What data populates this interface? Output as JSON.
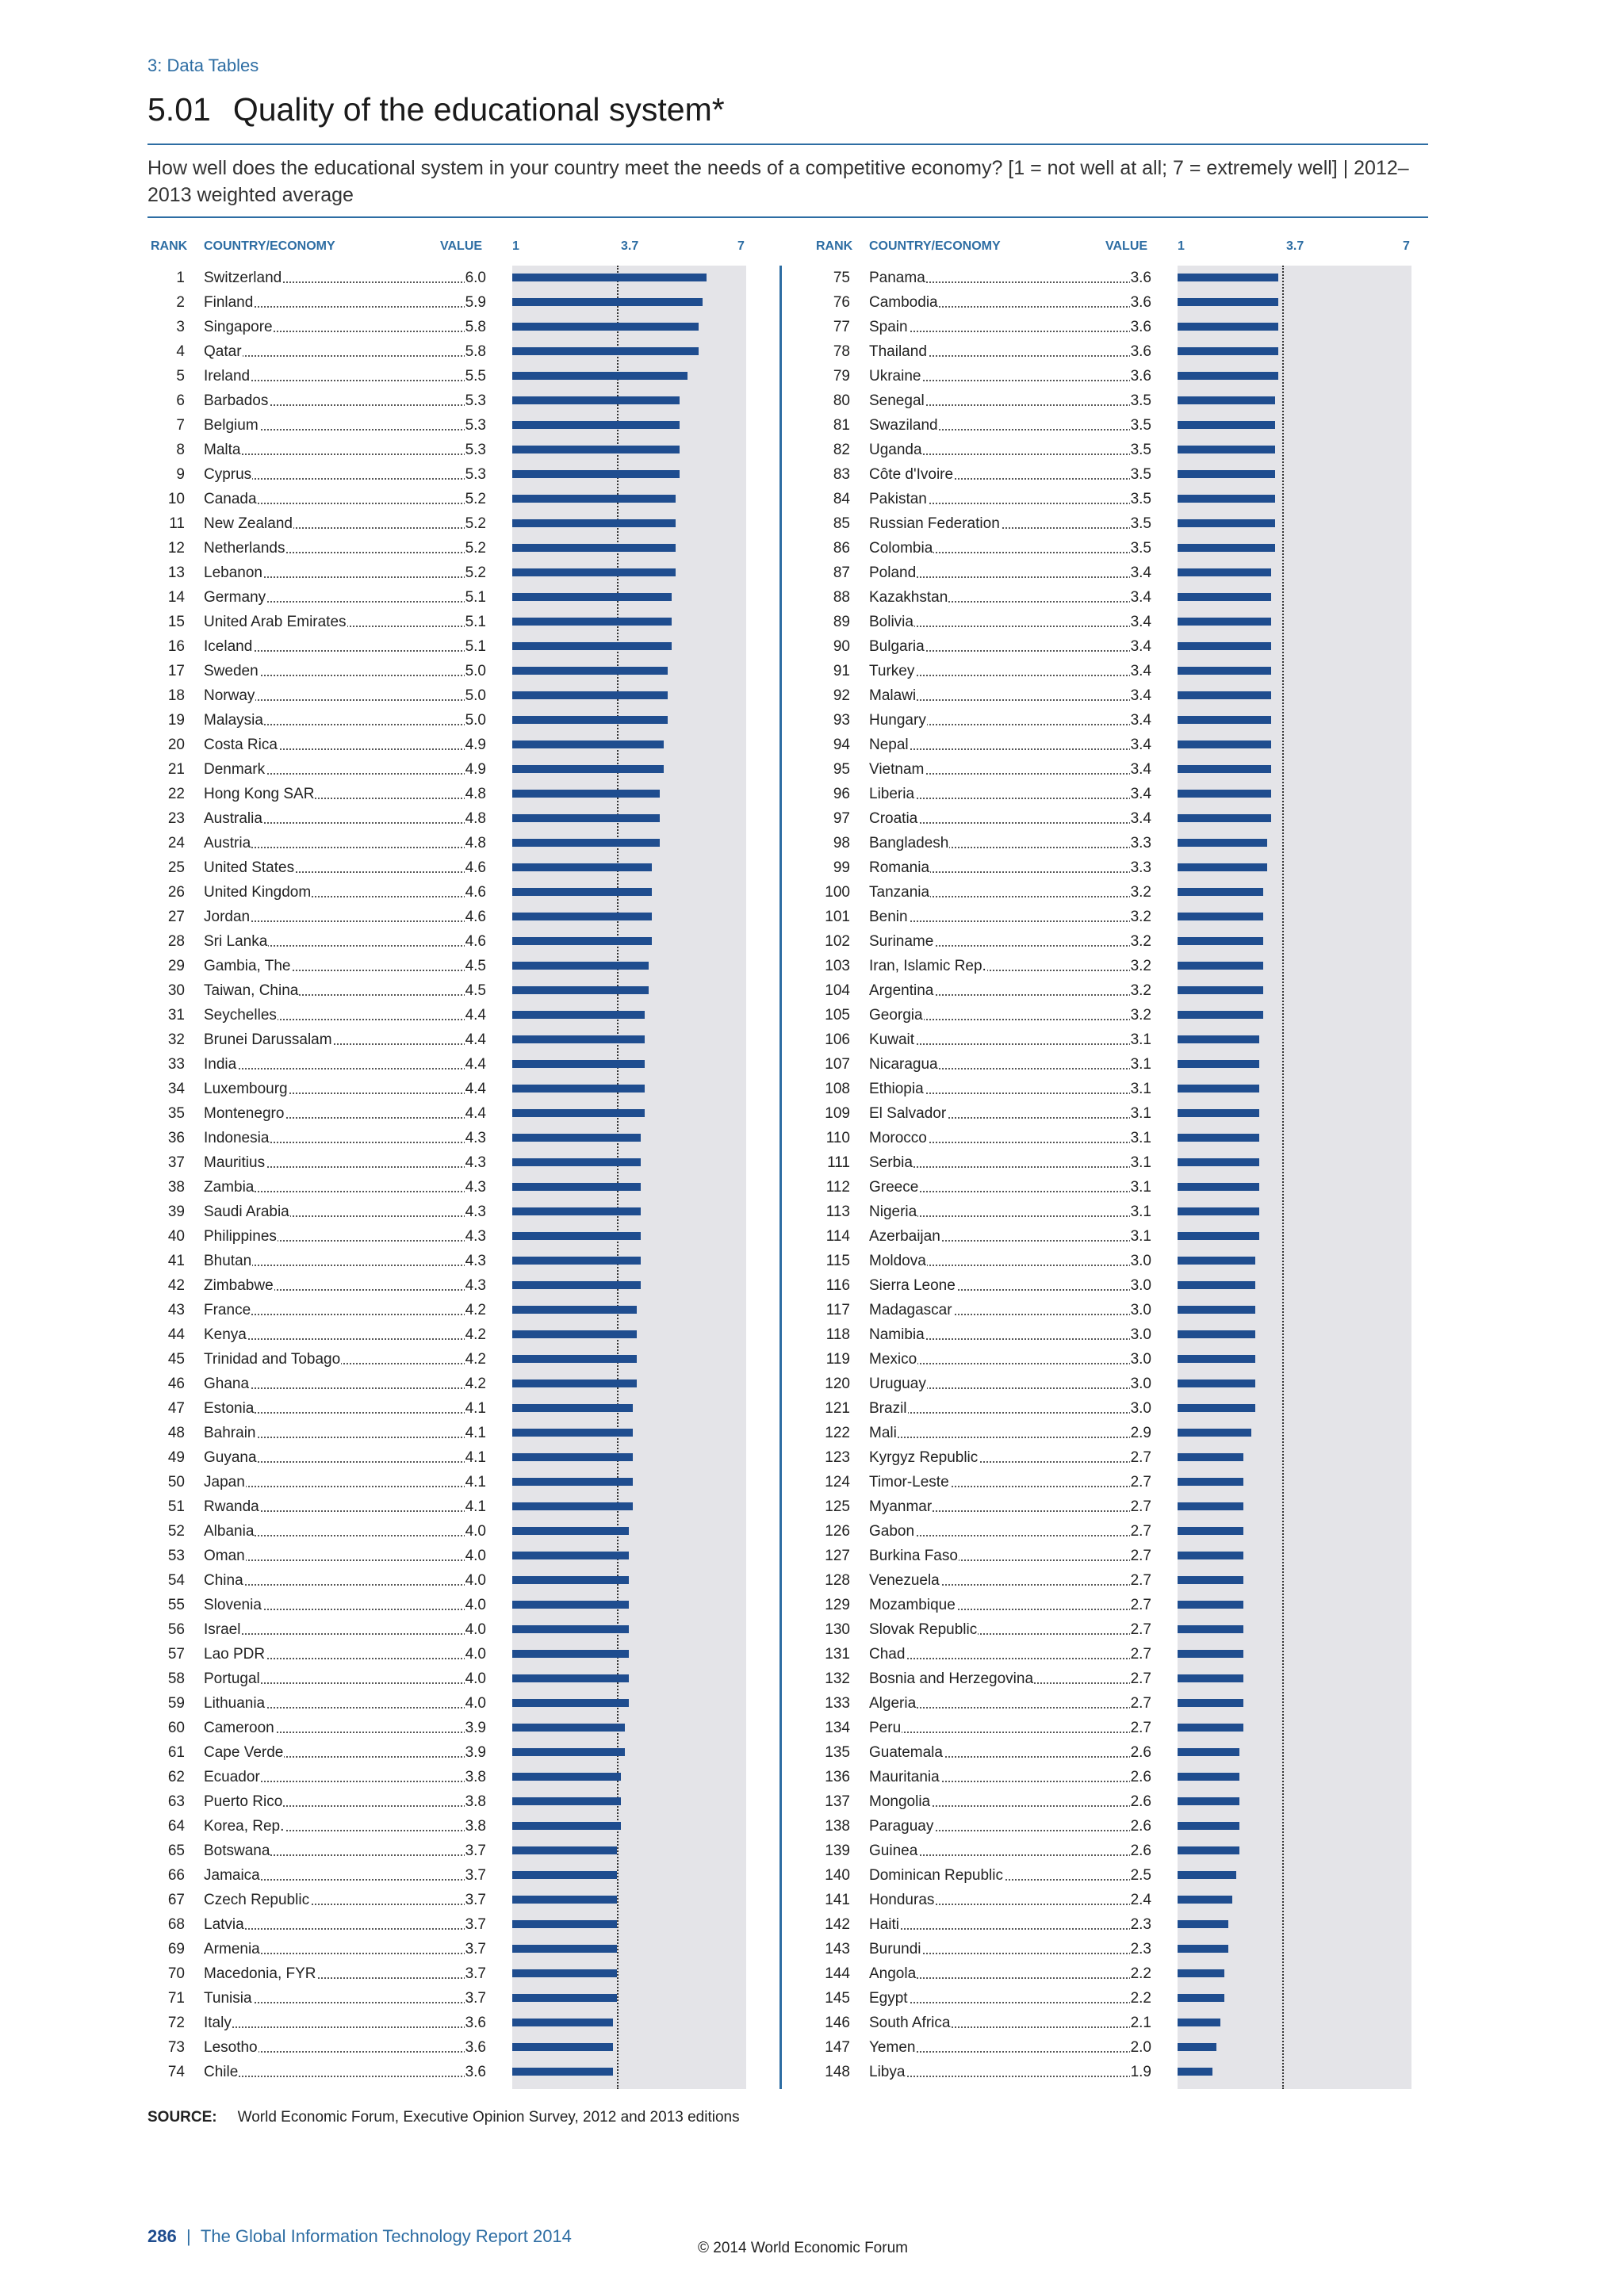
{
  "section": "3: Data Tables",
  "title_number": "5.01",
  "title_text": "Quality of the educational system*",
  "question": "How well does the educational system in your country meet the needs of a competitive economy? [1 = not well at all; 7 = extremely well]  |  2012–2013 weighted average",
  "headers": {
    "rank": "RANK",
    "country": "COUNTRY/ECONOMY",
    "value": "VALUE",
    "scale_min": "1",
    "scale_mid": "3.7",
    "scale_max": "7"
  },
  "source_label": "SOURCE:",
  "source_text": "World Economic Forum, Executive Opinion Survey, 2012 and 2013 editions",
  "footer_page": "286",
  "footer_sep": "|",
  "footer_text": "The Global Information Technology Report 2014",
  "copyright": "© 2014 World Economic Forum",
  "colors": {
    "bar": "#1f4d8f",
    "band": "#e4e4e8",
    "accent": "#2d6da3"
  },
  "chart_data": {
    "type": "bar",
    "scale": [
      1,
      7
    ],
    "reference": 3.7,
    "rows": [
      [
        "1",
        "Switzerland",
        "6.0"
      ],
      [
        "2",
        "Finland",
        "5.9"
      ],
      [
        "3",
        "Singapore",
        "5.8"
      ],
      [
        "4",
        "Qatar",
        "5.8"
      ],
      [
        "5",
        "Ireland",
        "5.5"
      ],
      [
        "6",
        "Barbados",
        "5.3"
      ],
      [
        "7",
        "Belgium",
        "5.3"
      ],
      [
        "8",
        "Malta",
        "5.3"
      ],
      [
        "9",
        "Cyprus",
        "5.3"
      ],
      [
        "10",
        "Canada",
        "5.2"
      ],
      [
        "11",
        "New Zealand",
        "5.2"
      ],
      [
        "12",
        "Netherlands",
        "5.2"
      ],
      [
        "13",
        "Lebanon",
        "5.2"
      ],
      [
        "14",
        "Germany",
        "5.1"
      ],
      [
        "15",
        "United Arab Emirates",
        "5.1"
      ],
      [
        "16",
        "Iceland",
        "5.1"
      ],
      [
        "17",
        "Sweden",
        "5.0"
      ],
      [
        "18",
        "Norway",
        "5.0"
      ],
      [
        "19",
        "Malaysia",
        "5.0"
      ],
      [
        "20",
        "Costa Rica",
        "4.9"
      ],
      [
        "21",
        "Denmark",
        "4.9"
      ],
      [
        "22",
        "Hong Kong SAR",
        "4.8"
      ],
      [
        "23",
        "Australia",
        "4.8"
      ],
      [
        "24",
        "Austria",
        "4.8"
      ],
      [
        "25",
        "United States",
        "4.6"
      ],
      [
        "26",
        "United Kingdom",
        "4.6"
      ],
      [
        "27",
        "Jordan",
        "4.6"
      ],
      [
        "28",
        "Sri Lanka",
        "4.6"
      ],
      [
        "29",
        "Gambia, The",
        "4.5"
      ],
      [
        "30",
        "Taiwan, China",
        "4.5"
      ],
      [
        "31",
        "Seychelles",
        "4.4"
      ],
      [
        "32",
        "Brunei Darussalam",
        "4.4"
      ],
      [
        "33",
        "India",
        "4.4"
      ],
      [
        "34",
        "Luxembourg",
        "4.4"
      ],
      [
        "35",
        "Montenegro",
        "4.4"
      ],
      [
        "36",
        "Indonesia",
        "4.3"
      ],
      [
        "37",
        "Mauritius",
        "4.3"
      ],
      [
        "38",
        "Zambia",
        "4.3"
      ],
      [
        "39",
        "Saudi Arabia",
        "4.3"
      ],
      [
        "40",
        "Philippines",
        "4.3"
      ],
      [
        "41",
        "Bhutan",
        "4.3"
      ],
      [
        "42",
        "Zimbabwe",
        "4.3"
      ],
      [
        "43",
        "France",
        "4.2"
      ],
      [
        "44",
        "Kenya",
        "4.2"
      ],
      [
        "45",
        "Trinidad and Tobago",
        "4.2"
      ],
      [
        "46",
        "Ghana",
        "4.2"
      ],
      [
        "47",
        "Estonia",
        "4.1"
      ],
      [
        "48",
        "Bahrain",
        "4.1"
      ],
      [
        "49",
        "Guyana",
        "4.1"
      ],
      [
        "50",
        "Japan",
        "4.1"
      ],
      [
        "51",
        "Rwanda",
        "4.1"
      ],
      [
        "52",
        "Albania",
        "4.0"
      ],
      [
        "53",
        "Oman",
        "4.0"
      ],
      [
        "54",
        "China",
        "4.0"
      ],
      [
        "55",
        "Slovenia",
        "4.0"
      ],
      [
        "56",
        "Israel",
        "4.0"
      ],
      [
        "57",
        "Lao PDR",
        "4.0"
      ],
      [
        "58",
        "Portugal",
        "4.0"
      ],
      [
        "59",
        "Lithuania",
        "4.0"
      ],
      [
        "60",
        "Cameroon",
        "3.9"
      ],
      [
        "61",
        "Cape Verde",
        "3.9"
      ],
      [
        "62",
        "Ecuador",
        "3.8"
      ],
      [
        "63",
        "Puerto Rico",
        "3.8"
      ],
      [
        "64",
        "Korea, Rep.",
        "3.8"
      ],
      [
        "65",
        "Botswana",
        "3.7"
      ],
      [
        "66",
        "Jamaica",
        "3.7"
      ],
      [
        "67",
        "Czech Republic",
        "3.7"
      ],
      [
        "68",
        "Latvia",
        "3.7"
      ],
      [
        "69",
        "Armenia",
        "3.7"
      ],
      [
        "70",
        "Macedonia, FYR",
        "3.7"
      ],
      [
        "71",
        "Tunisia",
        "3.7"
      ],
      [
        "72",
        "Italy",
        "3.6"
      ],
      [
        "73",
        "Lesotho",
        "3.6"
      ],
      [
        "74",
        "Chile",
        "3.6"
      ],
      [
        "75",
        "Panama",
        "3.6"
      ],
      [
        "76",
        "Cambodia",
        "3.6"
      ],
      [
        "77",
        "Spain",
        "3.6"
      ],
      [
        "78",
        "Thailand",
        "3.6"
      ],
      [
        "79",
        "Ukraine",
        "3.6"
      ],
      [
        "80",
        "Senegal",
        "3.5"
      ],
      [
        "81",
        "Swaziland",
        "3.5"
      ],
      [
        "82",
        "Uganda",
        "3.5"
      ],
      [
        "83",
        "Côte d'Ivoire",
        "3.5"
      ],
      [
        "84",
        "Pakistan",
        "3.5"
      ],
      [
        "85",
        "Russian Federation",
        "3.5"
      ],
      [
        "86",
        "Colombia",
        "3.5"
      ],
      [
        "87",
        "Poland",
        "3.4"
      ],
      [
        "88",
        "Kazakhstan",
        "3.4"
      ],
      [
        "89",
        "Bolivia",
        "3.4"
      ],
      [
        "90",
        "Bulgaria",
        "3.4"
      ],
      [
        "91",
        "Turkey",
        "3.4"
      ],
      [
        "92",
        "Malawi",
        "3.4"
      ],
      [
        "93",
        "Hungary",
        "3.4"
      ],
      [
        "94",
        "Nepal",
        "3.4"
      ],
      [
        "95",
        "Vietnam",
        "3.4"
      ],
      [
        "96",
        "Liberia",
        "3.4"
      ],
      [
        "97",
        "Croatia",
        "3.4"
      ],
      [
        "98",
        "Bangladesh",
        "3.3"
      ],
      [
        "99",
        "Romania",
        "3.3"
      ],
      [
        "100",
        "Tanzania",
        "3.2"
      ],
      [
        "101",
        "Benin",
        "3.2"
      ],
      [
        "102",
        "Suriname",
        "3.2"
      ],
      [
        "103",
        "Iran, Islamic Rep.",
        "3.2"
      ],
      [
        "104",
        "Argentina",
        "3.2"
      ],
      [
        "105",
        "Georgia",
        "3.2"
      ],
      [
        "106",
        "Kuwait",
        "3.1"
      ],
      [
        "107",
        "Nicaragua",
        "3.1"
      ],
      [
        "108",
        "Ethiopia",
        "3.1"
      ],
      [
        "109",
        "El Salvador",
        "3.1"
      ],
      [
        "110",
        "Morocco",
        "3.1"
      ],
      [
        "111",
        "Serbia",
        "3.1"
      ],
      [
        "112",
        "Greece",
        "3.1"
      ],
      [
        "113",
        "Nigeria",
        "3.1"
      ],
      [
        "114",
        "Azerbaijan",
        "3.1"
      ],
      [
        "115",
        "Moldova",
        "3.0"
      ],
      [
        "116",
        "Sierra Leone",
        "3.0"
      ],
      [
        "117",
        "Madagascar",
        "3.0"
      ],
      [
        "118",
        "Namibia",
        "3.0"
      ],
      [
        "119",
        "Mexico",
        "3.0"
      ],
      [
        "120",
        "Uruguay",
        "3.0"
      ],
      [
        "121",
        "Brazil",
        "3.0"
      ],
      [
        "122",
        "Mali",
        "2.9"
      ],
      [
        "123",
        "Kyrgyz Republic",
        "2.7"
      ],
      [
        "124",
        "Timor-Leste",
        "2.7"
      ],
      [
        "125",
        "Myanmar",
        "2.7"
      ],
      [
        "126",
        "Gabon",
        "2.7"
      ],
      [
        "127",
        "Burkina Faso",
        "2.7"
      ],
      [
        "128",
        "Venezuela",
        "2.7"
      ],
      [
        "129",
        "Mozambique",
        "2.7"
      ],
      [
        "130",
        "Slovak Republic",
        "2.7"
      ],
      [
        "131",
        "Chad",
        "2.7"
      ],
      [
        "132",
        "Bosnia and Herzegovina",
        "2.7"
      ],
      [
        "133",
        "Algeria",
        "2.7"
      ],
      [
        "134",
        "Peru",
        "2.7"
      ],
      [
        "135",
        "Guatemala",
        "2.6"
      ],
      [
        "136",
        "Mauritania",
        "2.6"
      ],
      [
        "137",
        "Mongolia",
        "2.6"
      ],
      [
        "138",
        "Paraguay",
        "2.6"
      ],
      [
        "139",
        "Guinea",
        "2.6"
      ],
      [
        "140",
        "Dominican Republic",
        "2.5"
      ],
      [
        "141",
        "Honduras",
        "2.4"
      ],
      [
        "142",
        "Haiti",
        "2.3"
      ],
      [
        "143",
        "Burundi",
        "2.3"
      ],
      [
        "144",
        "Angola",
        "2.2"
      ],
      [
        "145",
        "Egypt",
        "2.2"
      ],
      [
        "146",
        "South Africa",
        "2.1"
      ],
      [
        "147",
        "Yemen",
        "2.0"
      ],
      [
        "148",
        "Libya",
        "1.9"
      ]
    ]
  }
}
